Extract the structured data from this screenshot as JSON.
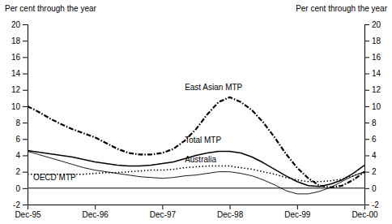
{
  "chart_data": {
    "type": "line",
    "ylabel": "Per cent through the year",
    "y2label": "Per cent through the year",
    "x": [
      0,
      2,
      4,
      6,
      8,
      10,
      12,
      14,
      16,
      18,
      20,
      22,
      24,
      26,
      28,
      30,
      32,
      34,
      36,
      38,
      40,
      42,
      44,
      46,
      48,
      50,
      52,
      54,
      56,
      58,
      60
    ],
    "xlim": [
      0,
      60
    ],
    "xticks": [
      {
        "value": 0,
        "label": "Dec-95"
      },
      {
        "value": 12,
        "label": "Dec-96"
      },
      {
        "value": 24,
        "label": "Dec-97"
      },
      {
        "value": 36,
        "label": "Dec-98"
      },
      {
        "value": 48,
        "label": "Dec-99"
      },
      {
        "value": 60,
        "label": "Dec-00"
      }
    ],
    "ylim": [
      -2,
      20
    ],
    "yticks": [
      -2,
      0,
      2,
      4,
      6,
      8,
      10,
      12,
      14,
      16,
      18,
      20
    ],
    "y2lim": [
      -2,
      20
    ],
    "y2ticks": [
      -2,
      0,
      2,
      4,
      6,
      8,
      10,
      12,
      14,
      16,
      18,
      20
    ],
    "series": [
      {
        "name": "East Asian MTP",
        "color": "#000000",
        "line_style": "dashdot",
        "values": [
          10.0,
          9.3,
          8.5,
          7.8,
          7.2,
          6.7,
          6.2,
          5.5,
          4.8,
          4.3,
          4.1,
          4.1,
          4.3,
          4.8,
          5.8,
          7.2,
          9.0,
          10.5,
          11.1,
          10.5,
          9.5,
          8.0,
          6.2,
          4.2,
          2.5,
          1.2,
          0.3,
          0.1,
          0.3,
          1.0,
          2.0
        ]
      },
      {
        "name": "Total MTP",
        "color": "#000000",
        "line_style": "solid",
        "values": [
          4.6,
          4.4,
          4.2,
          4.0,
          3.8,
          3.5,
          3.2,
          3.0,
          2.8,
          2.7,
          2.7,
          2.8,
          3.0,
          3.2,
          3.6,
          4.0,
          4.3,
          4.5,
          4.5,
          4.3,
          3.8,
          3.1,
          2.3,
          1.5,
          0.8,
          0.3,
          0.2,
          0.5,
          1.0,
          1.8,
          2.8
        ]
      },
      {
        "name": "Australia",
        "color": "#000000",
        "line_style": "solid",
        "values": [
          4.5,
          4.1,
          3.7,
          3.3,
          2.9,
          2.5,
          2.2,
          2.0,
          1.8,
          1.6,
          1.4,
          1.3,
          1.2,
          1.3,
          1.5,
          1.6,
          1.8,
          2.0,
          2.0,
          1.8,
          1.5,
          1.0,
          0.4,
          -0.3,
          -0.7,
          -0.7,
          -0.4,
          0.1,
          0.8,
          1.5,
          2.0
        ]
      },
      {
        "name": "OECD MTP",
        "color": "#000000",
        "line_style": "dotted",
        "values": [
          1.7,
          1.7,
          1.7,
          1.7,
          1.7,
          1.7,
          1.8,
          1.9,
          1.9,
          2.0,
          2.1,
          2.2,
          2.2,
          2.3,
          2.5,
          2.6,
          2.7,
          2.7,
          2.7,
          2.5,
          2.3,
          2.0,
          1.7,
          1.3,
          1.0,
          0.8,
          0.8,
          0.9,
          1.1,
          1.5,
          2.0
        ]
      }
    ],
    "annotations": [
      {
        "text": "East Asian MTP",
        "x": 28,
        "y": 12.0
      },
      {
        "text": "Total MTP",
        "x": 28,
        "y": 5.5
      },
      {
        "text": "Australia",
        "x": 28,
        "y": 3.2
      },
      {
        "text": "OECD MTP",
        "x": 1,
        "y": 1.0
      }
    ]
  }
}
